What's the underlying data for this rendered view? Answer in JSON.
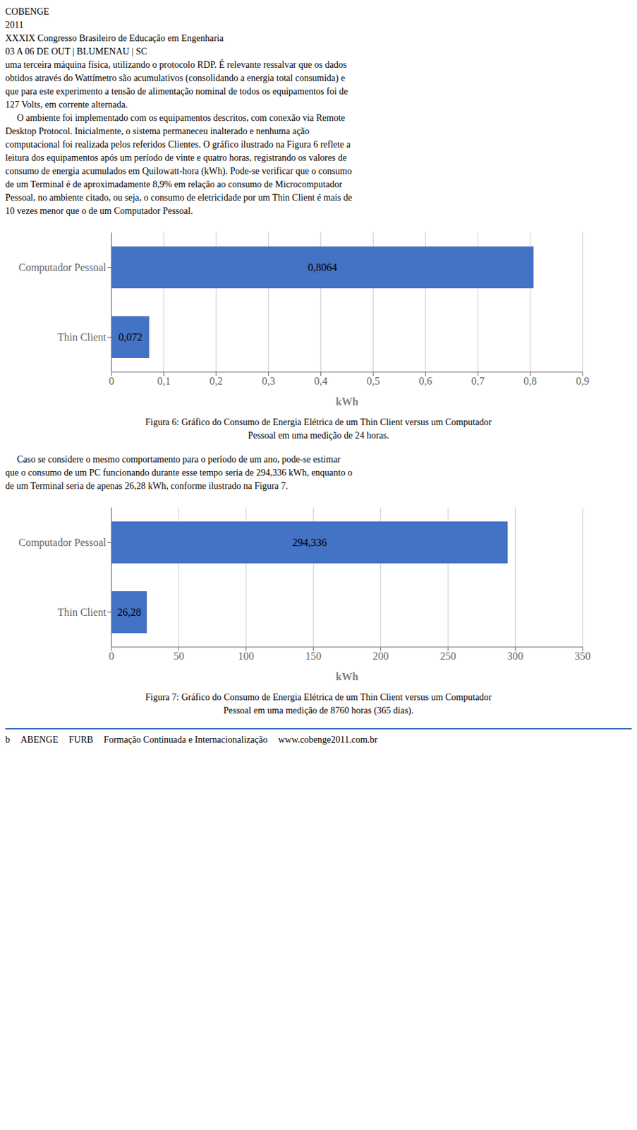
{
  "chart_data": [
    {
      "type": "bar",
      "orientation": "horizontal",
      "title": "Figura 6: Gráfico do Consumo de Energia Elétrica de um Thin Client versus um Computador",
      "subtitle": "Pessoal em uma medição de 24 horas.",
      "annotations": [
        "COBENGE",
        "2011",
        "XXXIX Congresso Brasileiro de Educação em Engenharia",
        "03 A 06 DE OUT | BLUMENAU | SC",
        "uma terceira máquina física, utilizando o protocolo RDP. É relevante ressalvar que os dados",
        "obtidos através do Wattímetro são acumulativos (consolidando a energia total consumida) e",
        "que para este experimento a tensão de alimentação nominal de todos os equipamentos foi de",
        "127 Volts, em corrente alternada.",
        "     O ambiente foi implementado com os equipamentos descritos, com conexão via Remote",
        "Desktop Protocol. Inicialmente, o sistema permaneceu inalterado e nenhuma ação",
        "computacional foi realizada pelos referidos Clientes. O gráfico ilustrado na Figura 6 reflete a",
        "leitura dos equipamentos após um período de vinte e quatro horas, registrando os valores de",
        "consumo de energia acumulados em Quilowatt-hora (kWh). Pode-se verificar que o consumo",
        "de um Terminal é de aproximadamente 8,9% em relação ao consumo de Microcomputador",
        "Pessoal, no ambiente citado, ou seja, o consumo de eletricidade por um Thin Client é mais de",
        "10 vezes menor que o de um Computador Pessoal."
      ],
      "categories": [
        "Computador Pessoal",
        "Thin Client"
      ],
      "values": [
        0.8064,
        0.072
      ],
      "value_labels": [
        "0,8064",
        "0,072"
      ],
      "data_labels": true,
      "color": "#4472c4",
      "x_label": "kWh",
      "xlim": [
        0,
        0.9
      ],
      "xticks": [
        0,
        {
          "value": 0.1,
          "label": "0,1"
        },
        {
          "value": 0.2,
          "label": "0,2"
        },
        {
          "value": 0.3,
          "label": "0,3"
        },
        {
          "value": 0.4,
          "label": "0,4"
        },
        {
          "value": 0.5,
          "label": "0,5"
        },
        {
          "value": 0.6,
          "label": "0,6"
        },
        {
          "value": 0.7,
          "label": "0,7"
        },
        {
          "value": 0.8,
          "label": "0,8"
        },
        {
          "value": 0.9,
          "label": "0,9"
        }
      ],
      "grid": true
    },
    {
      "type": "bar",
      "orientation": "horizontal",
      "title": "Figura 7: Gráfico do Consumo de Energia Elétrica de um Thin Client versus um Computador",
      "subtitle": "Pessoal em uma medição de 8760 horas (365 dias).",
      "annotations": [
        "     Caso se considere o mesmo comportamento para o período de um ano, pode-se estimar",
        "que o consumo de um PC funcionando durante esse tempo seria de 294,336 kWh, enquanto o",
        "de um Terminal seria de apenas 26,28 kWh, conforme ilustrado na Figura 7."
      ],
      "categories": [
        "Computador Pessoal",
        "Thin Client"
      ],
      "values": [
        294.336,
        26.28
      ],
      "value_labels": [
        "294,336",
        "26,28"
      ],
      "data_labels": true,
      "color": "#4472c4",
      "x_label": "kWh",
      "xlim": [
        0,
        350
      ],
      "xticks": [
        0,
        50,
        100,
        150,
        200,
        250,
        300,
        350
      ],
      "grid": true
    }
  ],
  "annotations": [
    "b",
    "ABENGE",
    "FURB",
    "Formação Continuada e Internacionalização",
    "www.cobenge2011.com.br"
  ]
}
